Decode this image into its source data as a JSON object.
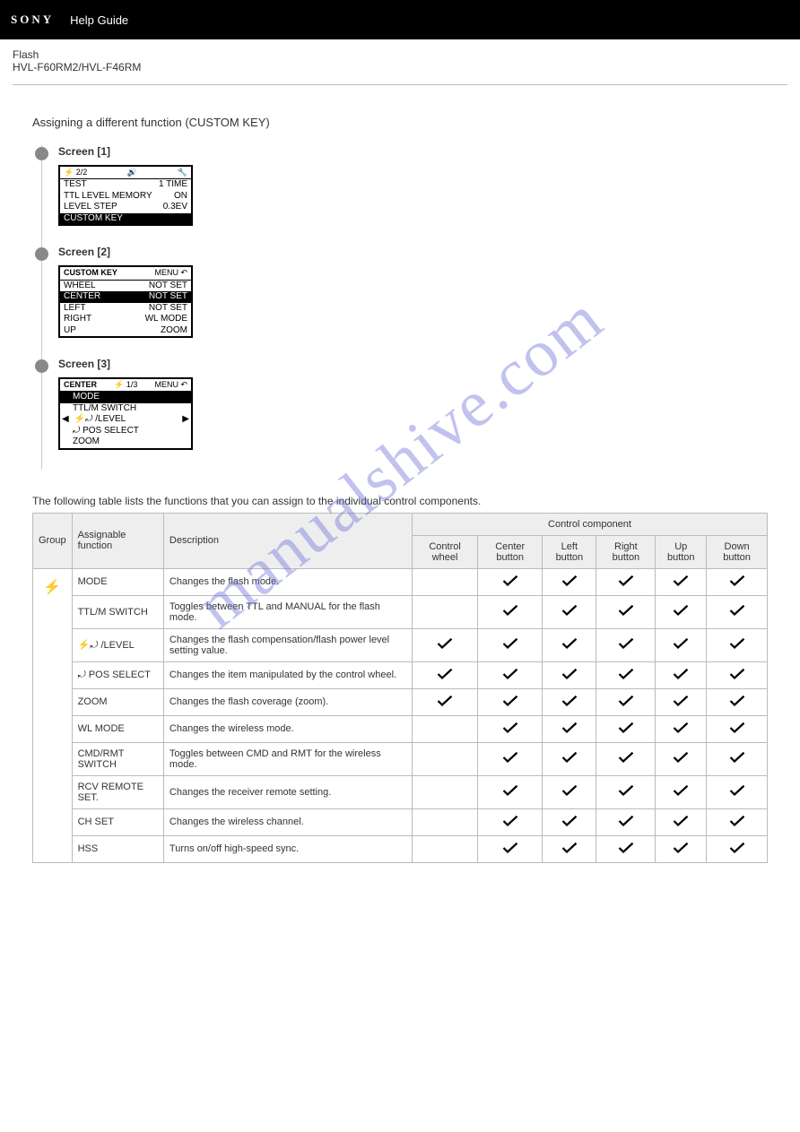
{
  "header": {
    "brand": "SONY",
    "help": "Help Guide"
  },
  "product": {
    "line1": "Flash",
    "line2": "HVL-F60RM2/HVL-F46RM"
  },
  "section_title": "Assigning a different function (CUSTOM KEY)",
  "steps": {
    "s1": {
      "label": "Screen [1]"
    },
    "s2": {
      "label": "Screen [2]"
    },
    "s3": {
      "label": "Screen [3]"
    }
  },
  "lcd1": {
    "top_left": "⚡ 2/2",
    "top_mid": "🔊",
    "top_right": "🔧",
    "r1a": "TEST",
    "r1b": "1 TIME",
    "r2a": "TTL LEVEL MEMORY",
    "r2b": "ON",
    "r3a": "LEVEL STEP",
    "r3b": "0.3EV",
    "r4a": "CUSTOM KEY"
  },
  "lcd2": {
    "top_left": "CUSTOM KEY",
    "top_right": "MENU ↶",
    "r1a": "WHEEL",
    "r1b": "NOT SET",
    "r2a": "CENTER",
    "r2b": "NOT SET",
    "r3a": "LEFT",
    "r3b": "NOT SET",
    "r4a": "RIGHT",
    "r4b": "WL MODE",
    "r5a": "UP",
    "r5b": "ZOOM"
  },
  "lcd3": {
    "top_left": "CENTER",
    "top_mid": "⚡ 1/3",
    "top_right": "MENU ↶",
    "r1": "MODE",
    "r2": "TTL/M SWITCH",
    "r3": "⚡⤾ /LEVEL",
    "r4": "⤾ POS SELECT",
    "r5": "ZOOM",
    "left_arrow": "◀",
    "right_arrow": "▶"
  },
  "table_title": "The following table lists the functions that you can assign to the individual control components.",
  "table": {
    "head_group": "Group",
    "head_func": "Assignable function",
    "head_desc": "Description",
    "head_ctrl": "Control component",
    "head_wheel": "Control wheel",
    "head_center": "Center button",
    "head_left": "Left button",
    "head_right": "Right button",
    "head_up": "Up button",
    "head_down": "Down button",
    "group_icon": "⚡",
    "rows": [
      {
        "func": "MODE",
        "desc": "Changes the flash mode.",
        "wheel": false,
        "center": true,
        "left": true,
        "right": true,
        "up": true,
        "down": true
      },
      {
        "func": "TTL/M SWITCH",
        "desc": "Toggles between TTL and MANUAL for the flash mode.",
        "wheel": false,
        "center": true,
        "left": true,
        "right": true,
        "up": true,
        "down": true
      },
      {
        "func_icon": "⚡⤾",
        "func": "/LEVEL",
        "desc": "Changes the flash compensation/flash power level setting value.",
        "wheel": true,
        "center": true,
        "left": true,
        "right": true,
        "up": true,
        "down": true
      },
      {
        "func_icon": "⤾",
        "func": "POS SELECT",
        "desc": "Changes the item manipulated by the control wheel.",
        "wheel": true,
        "center": true,
        "left": true,
        "right": true,
        "up": true,
        "down": true
      },
      {
        "func": "ZOOM",
        "desc": "Changes the flash coverage (zoom).",
        "wheel": true,
        "center": true,
        "left": true,
        "right": true,
        "up": true,
        "down": true
      },
      {
        "func": "WL MODE",
        "desc": "Changes the wireless mode.",
        "wheel": false,
        "center": true,
        "left": true,
        "right": true,
        "up": true,
        "down": true
      },
      {
        "func": "CMD/RMT SWITCH",
        "desc": "Toggles between CMD and RMT for the wireless mode.",
        "wheel": false,
        "center": true,
        "left": true,
        "right": true,
        "up": true,
        "down": true
      },
      {
        "func": "RCV REMOTE SET.",
        "desc": "Changes the receiver remote setting.",
        "wheel": false,
        "center": true,
        "left": true,
        "right": true,
        "up": true,
        "down": true
      },
      {
        "func": "CH SET",
        "desc": "Changes the wireless channel.",
        "wheel": false,
        "center": true,
        "left": true,
        "right": true,
        "up": true,
        "down": true
      },
      {
        "func": "HSS",
        "desc": "Turns on/off high-speed sync.",
        "wheel": false,
        "center": true,
        "left": true,
        "right": true,
        "up": true,
        "down": true
      }
    ]
  },
  "watermark": "manualshive.com",
  "colors": {
    "header_bg": "#000000",
    "header_fg": "#ffffff",
    "text": "#333333",
    "grid": "#bbbbbb",
    "thead_bg": "#eeeeee",
    "step_dot": "#888888",
    "watermark": "rgba(120,120,220,0.45)"
  }
}
